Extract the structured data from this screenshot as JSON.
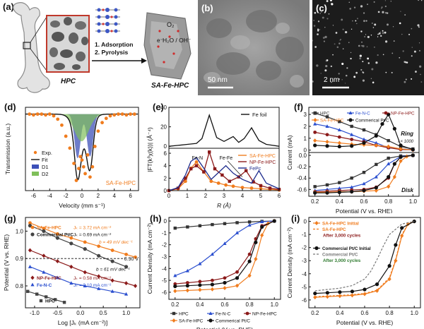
{
  "panel_labels": {
    "a": "(a)",
    "b": "(b)",
    "c": "(c)",
    "d": "(d)",
    "e": "(e)",
    "f": "(f)",
    "g": "(g)",
    "h": "(h)",
    "i": "(i)"
  },
  "schematic": {
    "hpc_label": "HPC",
    "product_label": "SA-Fe-HPC",
    "step1": "1. Adsorption",
    "step2": "2. Pyrolysis",
    "o2": "O₂",
    "electron": "e⁻",
    "products": "H₂O / OH⁻"
  },
  "tem": {
    "b_scale": "50 nm",
    "c_scale": "2 nm"
  },
  "colors": {
    "orange": "#f07c1e",
    "navy": "#1c2a8c",
    "blue": "#2b4fcf",
    "darkred": "#8b1a1a",
    "gray": "#555555",
    "black": "#111111",
    "green": "#7fbf5a"
  },
  "chart_data": [
    {
      "panel": "d",
      "type": "line",
      "xlabel": "Velocity (mm s⁻¹)",
      "ylabel": "Transmission (a.u.)",
      "xlim": [
        -7,
        7
      ],
      "xticks": [
        "-6",
        "-4",
        "-2",
        "0",
        "2",
        "4",
        "6"
      ],
      "legend": [
        "Exp.",
        "Fit",
        "D1",
        "D2"
      ],
      "annotation": "SA-Fe-HPC",
      "series": [
        {
          "name": "Exp.",
          "x": [
            -6.5,
            -6,
            -5.5,
            -5,
            -4.5,
            -4,
            -3.5,
            -3,
            -2.5,
            -2,
            -1.5,
            -1,
            -0.7,
            -0.4,
            -0.2,
            0,
            0.2,
            0.4,
            0.7,
            1,
            1.3,
            1.6,
            2,
            2.5,
            3,
            3.5,
            4,
            4.5,
            5,
            5.5,
            6,
            6.5
          ],
          "y": [
            1,
            0.99,
            1,
            1,
            0.99,
            1,
            0.98,
            0.94,
            0.87,
            0.74,
            0.6,
            0.42,
            0.22,
            0.36,
            0.5,
            0.46,
            0.38,
            0.3,
            0.52,
            0.26,
            0.38,
            0.62,
            0.8,
            0.9,
            0.95,
            0.98,
            0.99,
            1,
            1,
            0.99,
            1,
            1
          ]
        }
      ]
    },
    {
      "panel": "e",
      "type": "line",
      "xlabel": "R (Å)",
      "ylabel": "|FT(k³χ(k))| (Å⁻⁴)",
      "xlim": [
        0,
        6
      ],
      "xticks": [
        "0",
        "1",
        "2",
        "3",
        "4",
        "5",
        "6"
      ],
      "top_yticks": [
        "40",
        "20",
        "0"
      ],
      "bottom_yticks": [
        "6",
        "4",
        "2",
        "0"
      ],
      "legend_top": [
        "Fe foil"
      ],
      "legend_bottom": [
        "SA-Fe-HPC",
        "NP-Fe-HPC",
        "FePc"
      ],
      "annotations": [
        "Fe-N",
        "Fe-Fe"
      ],
      "series_top": [
        {
          "name": "Fe foil",
          "x": [
            0,
            0.5,
            1,
            1.5,
            1.8,
            2.2,
            2.6,
            3,
            3.5,
            3.8,
            4.1,
            4.5,
            4.9,
            5.3,
            6
          ],
          "y": [
            0,
            1,
            2,
            3,
            8,
            32,
            9,
            5,
            10,
            4,
            8,
            19,
            6,
            2,
            0
          ]
        }
      ],
      "series_bottom": [
        {
          "name": "SA-Fe-HPC",
          "x": [
            0,
            0.5,
            0.9,
            1.2,
            1.5,
            1.9,
            2.3,
            2.7,
            3.1,
            3.5,
            4,
            4.5,
            5,
            5.5,
            6
          ],
          "y": [
            0,
            0.3,
            1.5,
            3.6,
            4.6,
            3,
            1.5,
            1.2,
            0.9,
            0.7,
            0.5,
            0.4,
            0.3,
            0.2,
            0.1
          ]
        },
        {
          "name": "NP-Fe-HPC",
          "x": [
            0,
            0.5,
            0.9,
            1.2,
            1.5,
            1.9,
            2.2,
            2.5,
            2.9,
            3.3,
            3.8,
            4.2,
            4.6,
            5,
            5.5,
            6
          ],
          "y": [
            0,
            0.4,
            2,
            3.5,
            4,
            3,
            6.2,
            3.5,
            2.5,
            1.5,
            2.2,
            3.2,
            1.4,
            0.8,
            0.4,
            0.2
          ]
        },
        {
          "name": "FePc",
          "x": [
            0,
            0.5,
            0.9,
            1.2,
            1.5,
            1.9,
            2.3,
            2.7,
            3.1,
            3.5,
            4,
            4.5,
            4.9,
            5.3,
            6
          ],
          "y": [
            0,
            0.5,
            2.5,
            4.7,
            5.3,
            3.6,
            1.8,
            2.9,
            4,
            2.8,
            1.8,
            1.2,
            3.2,
            1.2,
            0.3
          ]
        }
      ]
    },
    {
      "panel": "f",
      "type": "line",
      "xlabel": "Potential (V vs. RHE)",
      "ylabel": "Current (mA)",
      "xlim": [
        0.15,
        1.05
      ],
      "xticks": [
        "0.2",
        "0.4",
        "0.6",
        "0.8",
        "1.0"
      ],
      "top_yticks": [
        "3",
        "2",
        "1",
        "0"
      ],
      "bottom_yticks": [
        "0.0",
        "-0.2",
        "-0.4",
        "-0.6"
      ],
      "top_label": "Ring",
      "top_note": "I × 1000",
      "bottom_label": "Disk",
      "legend": [
        "HPC",
        "Fe-N-C",
        "NP-Fe-HPC",
        "SA-Fe-HPC",
        "Commerical Pt/C"
      ],
      "ring": [
        {
          "name": "HPC",
          "x": [
            0.2,
            0.3,
            0.4,
            0.5,
            0.6,
            0.7,
            0.8,
            0.9,
            1.0
          ],
          "y": [
            3.1,
            2.8,
            2.4,
            2.0,
            1.7,
            1.3,
            0.8,
            0.3,
            0.1
          ]
        },
        {
          "name": "Fe-N-C",
          "x": [
            0.2,
            0.3,
            0.4,
            0.5,
            0.6,
            0.7,
            0.8,
            0.9,
            1.0
          ],
          "y": [
            2.2,
            2.0,
            1.7,
            1.3,
            0.9,
            0.6,
            0.2,
            0.1,
            0.05
          ]
        },
        {
          "name": "NP-Fe-HPC",
          "x": [
            0.2,
            0.3,
            0.4,
            0.5,
            0.6,
            0.7,
            0.8,
            0.9,
            1.0
          ],
          "y": [
            1.5,
            1.3,
            1.1,
            0.9,
            0.7,
            0.4,
            0.2,
            0.05,
            0.02
          ]
        },
        {
          "name": "SA-Fe-HPC",
          "x": [
            0.2,
            0.3,
            0.4,
            0.5,
            0.6,
            0.7,
            0.8,
            0.9,
            1.0
          ],
          "y": [
            0.8,
            0.7,
            0.6,
            0.5,
            0.45,
            0.4,
            0.3,
            0.1,
            0.02
          ]
        },
        {
          "name": "Commerical Pt/C",
          "x": [
            0.2,
            0.3,
            0.4,
            0.5,
            0.6,
            0.7,
            0.75,
            0.8,
            0.85,
            0.9,
            1.0
          ],
          "y": [
            0.4,
            0.35,
            0.3,
            0.35,
            0.6,
            1.2,
            2.2,
            3.0,
            1.8,
            0.4,
            0.05
          ]
        }
      ],
      "disk": [
        {
          "name": "HPC",
          "x": [
            0.2,
            0.3,
            0.4,
            0.5,
            0.6,
            0.7,
            0.8,
            0.9,
            1.0
          ],
          "y": [
            -0.55,
            -0.52,
            -0.48,
            -0.4,
            -0.3,
            -0.16,
            -0.05,
            -0.01,
            0
          ]
        },
        {
          "name": "Fe-N-C",
          "x": [
            0.2,
            0.3,
            0.4,
            0.5,
            0.6,
            0.7,
            0.8,
            0.9,
            1.0
          ],
          "y": [
            -0.62,
            -0.6,
            -0.58,
            -0.56,
            -0.5,
            -0.38,
            -0.15,
            -0.02,
            0
          ]
        },
        {
          "name": "NP-Fe-HPC",
          "x": [
            0.2,
            0.3,
            0.4,
            0.5,
            0.6,
            0.7,
            0.8,
            0.85,
            0.9,
            1.0
          ],
          "y": [
            -0.64,
            -0.63,
            -0.62,
            -0.61,
            -0.6,
            -0.56,
            -0.4,
            -0.15,
            -0.03,
            0
          ]
        },
        {
          "name": "SA-Fe-HPC",
          "x": [
            0.2,
            0.3,
            0.4,
            0.5,
            0.6,
            0.7,
            0.8,
            0.85,
            0.9,
            0.95,
            1.0
          ],
          "y": [
            -0.65,
            -0.65,
            -0.64,
            -0.64,
            -0.63,
            -0.62,
            -0.55,
            -0.38,
            -0.1,
            -0.02,
            0
          ]
        },
        {
          "name": "Commerical Pt/C",
          "x": [
            0.2,
            0.3,
            0.4,
            0.5,
            0.6,
            0.7,
            0.8,
            0.85,
            0.9,
            1.0
          ],
          "y": [
            -0.66,
            -0.66,
            -0.65,
            -0.64,
            -0.62,
            -0.57,
            -0.38,
            -0.15,
            -0.03,
            0
          ]
        }
      ]
    },
    {
      "panel": "g",
      "type": "line",
      "xlabel": "Log [Jₖ (mA cm⁻²)]",
      "ylabel": "Potential (V vs. RHE)",
      "xlim": [
        -1.2,
        1.3
      ],
      "ylim": [
        0.72,
        1.05
      ],
      "xticks": [
        "-1.0",
        "-0.5",
        "0.0",
        "0.5",
        "1.0"
      ],
      "yticks": [
        "1.0",
        "0.9",
        "0.8"
      ],
      "legend": [
        "SA-Fe-HPC",
        "Commercial Pt/C",
        "NP-Fe-HPC",
        "Fe-N-C",
        "HPC"
      ],
      "jk_labels": [
        "Jₖ = 3.72 mA cm⁻²",
        "Jₖ = 0.69 mA cm⁻²",
        "Jₖ = 0.58 mA cm⁻²",
        "Jₖ = 0.10 mA cm⁻²"
      ],
      "tafel": [
        "b = 49 mV dec⁻¹",
        "b = 61 mV dec⁻¹"
      ],
      "ref_line": "0.90 V",
      "series": [
        {
          "name": "SA-Fe-HPC",
          "x": [
            -1.1,
            -0.8,
            -0.5,
            -0.2,
            0.1,
            0.4,
            0.7,
            1.0,
            1.2
          ],
          "y": [
            1.03,
            1.01,
            0.99,
            0.975,
            0.96,
            0.945,
            0.93,
            0.915,
            0.905
          ]
        },
        {
          "name": "Commercial Pt/C",
          "x": [
            -1.1,
            -0.8,
            -0.5,
            -0.2,
            0.1,
            0.4,
            0.7,
            1.0
          ],
          "y": [
            1.02,
            1.0,
            0.975,
            0.955,
            0.935,
            0.91,
            0.89,
            0.87
          ]
        },
        {
          "name": "NP-Fe-HPC",
          "x": [
            -1.1,
            -0.8,
            -0.5,
            -0.2,
            0.1,
            0.4,
            0.7,
            1.0,
            1.2
          ],
          "y": [
            0.93,
            0.91,
            0.89,
            0.87,
            0.85,
            0.835,
            0.82,
            0.81,
            0.8
          ]
        },
        {
          "name": "Fe-N-C",
          "x": [
            -1.1,
            -0.8,
            -0.5,
            -0.2,
            0.1,
            0.4,
            0.7,
            1.0
          ],
          "y": [
            0.87,
            0.85,
            0.83,
            0.81,
            0.8,
            0.79,
            0.78,
            0.77
          ]
        },
        {
          "name": "HPC",
          "x": [
            -1.15,
            -0.95,
            -0.75,
            -0.55,
            -0.35
          ],
          "y": [
            0.78,
            0.77,
            0.76,
            0.75,
            0.74
          ]
        }
      ]
    },
    {
      "panel": "h",
      "type": "line",
      "xlabel": "Potential (V vs. RHE)",
      "ylabel": "Current Density (mA cm⁻²)",
      "xlim": [
        0.15,
        1.05
      ],
      "ylim": [
        -6.6,
        0.3
      ],
      "xticks": [
        "0.2",
        "0.4",
        "0.6",
        "0.8",
        "1.0"
      ],
      "yticks": [
        "0",
        "-1",
        "-2",
        "-3",
        "-4",
        "-5",
        "-6"
      ],
      "legend": [
        "HPC",
        "Fe-N-C",
        "NP-Fe-HPC",
        "SA-Fe-HPC",
        "Commerical Pt/C"
      ],
      "series": [
        {
          "name": "HPC",
          "x": [
            0.2,
            0.3,
            0.4,
            0.5,
            0.6,
            0.7,
            0.8,
            0.9,
            1.0
          ],
          "y": [
            -0.6,
            -0.5,
            -0.4,
            -0.3,
            -0.22,
            -0.14,
            -0.08,
            -0.03,
            0
          ]
        },
        {
          "name": "Fe-N-C",
          "x": [
            0.2,
            0.3,
            0.4,
            0.5,
            0.6,
            0.7,
            0.8,
            0.9,
            1.0
          ],
          "y": [
            -4.6,
            -4.2,
            -3.6,
            -2.8,
            -1.9,
            -1.0,
            -0.35,
            -0.06,
            0
          ]
        },
        {
          "name": "NP-Fe-HPC",
          "x": [
            0.2,
            0.3,
            0.4,
            0.5,
            0.6,
            0.7,
            0.8,
            0.85,
            0.9,
            1.0
          ],
          "y": [
            -5.3,
            -5.2,
            -5.1,
            -5.0,
            -4.8,
            -4.3,
            -2.8,
            -1.5,
            -0.4,
            0
          ]
        },
        {
          "name": "SA-Fe-HPC",
          "x": [
            0.2,
            0.3,
            0.4,
            0.5,
            0.6,
            0.7,
            0.8,
            0.85,
            0.9,
            0.95,
            1.0
          ],
          "y": [
            -5.9,
            -5.85,
            -5.8,
            -5.75,
            -5.65,
            -5.45,
            -4.6,
            -3.2,
            -1.2,
            -0.2,
            0
          ]
        },
        {
          "name": "Commerical Pt/C",
          "x": [
            0.2,
            0.3,
            0.4,
            0.5,
            0.6,
            0.7,
            0.8,
            0.85,
            0.9,
            1.0
          ],
          "y": [
            -5.5,
            -5.45,
            -5.4,
            -5.35,
            -5.2,
            -4.8,
            -3.4,
            -1.8,
            -0.5,
            0
          ]
        }
      ]
    },
    {
      "panel": "i",
      "type": "line",
      "xlabel": "Potential (V vs. RHE)",
      "ylabel": "Current Density (mA cm⁻²)",
      "xlim": [
        0.15,
        1.05
      ],
      "ylim": [
        -6.6,
        0.3
      ],
      "xticks": [
        "0.2",
        "0.4",
        "0.6",
        "0.8",
        "1.0"
      ],
      "yticks": [
        "0",
        "-1",
        "-2",
        "-3",
        "-4",
        "-5",
        "-6"
      ],
      "legend": [
        "SA-Fe-HPC   Initial",
        "SA-Fe-HPC",
        "After 3,000 cycles",
        "Commercial Pt/C   Initial",
        "Commercial Pt/C",
        "After 3,000 cycles"
      ],
      "series": [
        {
          "name": "SA-Fe-HPC Initial",
          "x": [
            0.2,
            0.3,
            0.4,
            0.5,
            0.6,
            0.7,
            0.8,
            0.85,
            0.9,
            0.95,
            1.0
          ],
          "y": [
            -5.8,
            -5.75,
            -5.7,
            -5.65,
            -5.55,
            -5.3,
            -4.4,
            -3.0,
            -1.1,
            -0.2,
            0
          ]
        },
        {
          "name": "SA-Fe-HPC after",
          "x": [
            0.2,
            0.3,
            0.4,
            0.5,
            0.6,
            0.7,
            0.8,
            0.85,
            0.9,
            0.95,
            1.0
          ],
          "y": [
            -5.75,
            -5.7,
            -5.65,
            -5.6,
            -5.5,
            -5.25,
            -4.3,
            -2.9,
            -1.0,
            -0.2,
            0
          ]
        },
        {
          "name": "Commercial Pt/C Initial",
          "x": [
            0.2,
            0.3,
            0.4,
            0.5,
            0.6,
            0.7,
            0.8,
            0.85,
            0.9,
            1.0
          ],
          "y": [
            -5.5,
            -5.45,
            -5.4,
            -5.35,
            -5.2,
            -4.8,
            -3.4,
            -1.8,
            -0.5,
            0
          ]
        },
        {
          "name": "Commercial Pt/C after",
          "x": [
            0.2,
            0.3,
            0.4,
            0.5,
            0.6,
            0.65,
            0.7,
            0.75,
            0.8,
            0.9,
            1.0
          ],
          "y": [
            -5.3,
            -5.2,
            -5.1,
            -4.9,
            -4.4,
            -3.8,
            -2.9,
            -1.9,
            -1.0,
            -0.2,
            0
          ]
        }
      ]
    }
  ]
}
